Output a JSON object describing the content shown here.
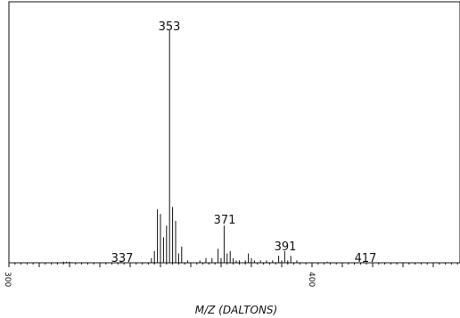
{
  "chart_data": {
    "type": "bar",
    "title": "",
    "xlabel": "M/Z (DALTONS)",
    "ylabel": "",
    "xlim": [
      300,
      449
    ],
    "ylim": [
      0,
      100
    ],
    "x_tick_labels": [
      "300",
      "400"
    ],
    "grid": false,
    "legend": "none",
    "peak_labels": [
      "353",
      "337",
      "371",
      "391",
      "417"
    ],
    "peaks": [
      {
        "x": 318,
        "y": 0.5
      },
      {
        "x": 319,
        "y": 0.5
      },
      {
        "x": 320,
        "y": 0.5
      },
      {
        "x": 337,
        "y": 0.8
      },
      {
        "x": 347,
        "y": 2
      },
      {
        "x": 348,
        "y": 5
      },
      {
        "x": 349,
        "y": 23
      },
      {
        "x": 350,
        "y": 21
      },
      {
        "x": 351,
        "y": 11
      },
      {
        "x": 352,
        "y": 16
      },
      {
        "x": 353,
        "y": 100
      },
      {
        "x": 354,
        "y": 24
      },
      {
        "x": 355,
        "y": 18
      },
      {
        "x": 356,
        "y": 4
      },
      {
        "x": 357,
        "y": 7
      },
      {
        "x": 359,
        "y": 1
      },
      {
        "x": 363,
        "y": 1
      },
      {
        "x": 365,
        "y": 2
      },
      {
        "x": 367,
        "y": 2
      },
      {
        "x": 369,
        "y": 6
      },
      {
        "x": 370,
        "y": 2
      },
      {
        "x": 371,
        "y": 16
      },
      {
        "x": 372,
        "y": 4
      },
      {
        "x": 373,
        "y": 5
      },
      {
        "x": 374,
        "y": 2
      },
      {
        "x": 375,
        "y": 1
      },
      {
        "x": 376,
        "y": 1
      },
      {
        "x": 378,
        "y": 1
      },
      {
        "x": 379,
        "y": 4
      },
      {
        "x": 380,
        "y": 2
      },
      {
        "x": 381,
        "y": 1
      },
      {
        "x": 383,
        "y": 1
      },
      {
        "x": 385,
        "y": 1
      },
      {
        "x": 387,
        "y": 1
      },
      {
        "x": 389,
        "y": 3
      },
      {
        "x": 390,
        "y": 1
      },
      {
        "x": 391,
        "y": 5
      },
      {
        "x": 392,
        "y": 1
      },
      {
        "x": 393,
        "y": 3
      },
      {
        "x": 395,
        "y": 1
      },
      {
        "x": 405,
        "y": 0.5
      },
      {
        "x": 417,
        "y": 0.5
      }
    ]
  },
  "colors": {
    "axis": "#111111",
    "peak": "#111111",
    "background": "#ffffff"
  }
}
